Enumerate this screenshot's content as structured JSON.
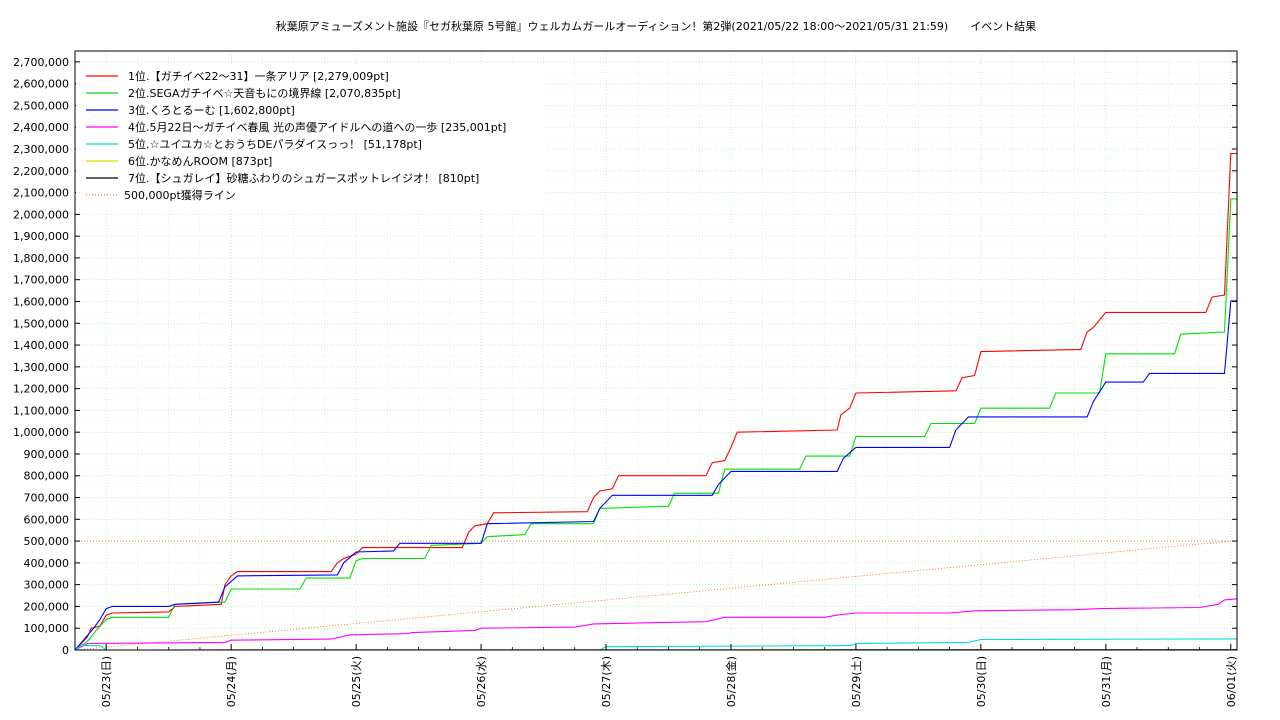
{
  "chart_data": {
    "type": "line",
    "title": "秋葉原アミューズメント施設『セガ秋葉原 5号館』ウェルカムガールオーディション！第2弾(2021/05/22 18:00〜2021/05/31 21:59)　　イベント結果",
    "xlabel": "",
    "ylabel": "",
    "x_ticks": [
      "05/23(日)",
      "05/24(月)",
      "05/25(火)",
      "05/26(水)",
      "05/27(木)",
      "05/28(金)",
      "05/29(土)",
      "05/30(日)",
      "05/31(月)",
      "06/01(火)"
    ],
    "x_tick_days": [
      1,
      2,
      3,
      4,
      5,
      6,
      7,
      8,
      9,
      10
    ],
    "xlim_days": [
      0.75,
      10.05
    ],
    "ylim": [
      0,
      2750000
    ],
    "y_ticks": [
      "0",
      "100,000",
      "200,000",
      "300,000",
      "400,000",
      "500,000",
      "600,000",
      "700,000",
      "800,000",
      "900,000",
      "1,000,000",
      "1,100,000",
      "1,200,000",
      "1,300,000",
      "1,400,000",
      "1,500,000",
      "1,600,000",
      "1,700,000",
      "1,800,000",
      "1,900,000",
      "2,000,000",
      "2,100,000",
      "2,200,000",
      "2,300,000",
      "2,400,000",
      "2,500,000",
      "2,600,000",
      "2,700,000"
    ],
    "y_tick_values": [
      0,
      100000,
      200000,
      300000,
      400000,
      500000,
      600000,
      700000,
      800000,
      900000,
      1000000,
      1100000,
      1200000,
      1300000,
      1400000,
      1500000,
      1600000,
      1700000,
      1800000,
      1900000,
      2000000,
      2100000,
      2200000,
      2300000,
      2400000,
      2500000,
      2600000,
      2700000
    ],
    "grid": true,
    "legend_position": "top-left",
    "series": [
      {
        "name": "1位.【ガチイベ22〜31】一条アリア [2,279,009pt]",
        "color": "#ff0000",
        "points": [
          [
            0.75,
            0
          ],
          [
            0.85,
            60000
          ],
          [
            0.88,
            100000
          ],
          [
            0.95,
            110000
          ],
          [
            1.0,
            160000
          ],
          [
            1.05,
            170000
          ],
          [
            1.5,
            175000
          ],
          [
            1.55,
            200000
          ],
          [
            1.92,
            210000
          ],
          [
            1.95,
            300000
          ],
          [
            2.0,
            340000
          ],
          [
            2.05,
            360000
          ],
          [
            2.8,
            360000
          ],
          [
            2.85,
            400000
          ],
          [
            2.9,
            420000
          ],
          [
            3.0,
            440000
          ],
          [
            3.05,
            470000
          ],
          [
            3.85,
            470000
          ],
          [
            3.9,
            540000
          ],
          [
            3.95,
            570000
          ],
          [
            4.05,
            580000
          ],
          [
            4.1,
            630000
          ],
          [
            4.85,
            635000
          ],
          [
            4.9,
            700000
          ],
          [
            4.95,
            730000
          ],
          [
            5.05,
            740000
          ],
          [
            5.1,
            800000
          ],
          [
            5.8,
            800000
          ],
          [
            5.85,
            860000
          ],
          [
            5.95,
            870000
          ],
          [
            6.0,
            930000
          ],
          [
            6.05,
            1000000
          ],
          [
            6.85,
            1010000
          ],
          [
            6.88,
            1080000
          ],
          [
            6.95,
            1110000
          ],
          [
            7.0,
            1180000
          ],
          [
            7.8,
            1190000
          ],
          [
            7.85,
            1250000
          ],
          [
            7.95,
            1260000
          ],
          [
            8.0,
            1370000
          ],
          [
            8.8,
            1380000
          ],
          [
            8.85,
            1460000
          ],
          [
            8.9,
            1480000
          ],
          [
            9.0,
            1550000
          ],
          [
            9.8,
            1550000
          ],
          [
            9.85,
            1620000
          ],
          [
            9.95,
            1630000
          ],
          [
            10.0,
            2279009
          ],
          [
            10.05,
            2279009
          ]
        ]
      },
      {
        "name": "2位.SEGAガチイベ☆天音もにの境界線 [2,070,835pt]",
        "color": "#00e000",
        "points": [
          [
            0.75,
            0
          ],
          [
            0.85,
            40000
          ],
          [
            0.92,
            90000
          ],
          [
            1.0,
            140000
          ],
          [
            1.05,
            150000
          ],
          [
            1.5,
            150000
          ],
          [
            1.55,
            210000
          ],
          [
            1.95,
            220000
          ],
          [
            2.0,
            280000
          ],
          [
            2.55,
            280000
          ],
          [
            2.6,
            330000
          ],
          [
            2.95,
            330000
          ],
          [
            3.0,
            410000
          ],
          [
            3.05,
            420000
          ],
          [
            3.55,
            420000
          ],
          [
            3.6,
            480000
          ],
          [
            4.0,
            490000
          ],
          [
            4.05,
            520000
          ],
          [
            4.35,
            530000
          ],
          [
            4.4,
            580000
          ],
          [
            4.9,
            580000
          ],
          [
            4.95,
            650000
          ],
          [
            5.5,
            660000
          ],
          [
            5.55,
            720000
          ],
          [
            5.9,
            720000
          ],
          [
            5.95,
            830000
          ],
          [
            6.55,
            830000
          ],
          [
            6.6,
            890000
          ],
          [
            6.95,
            890000
          ],
          [
            7.0,
            980000
          ],
          [
            7.55,
            980000
          ],
          [
            7.6,
            1040000
          ],
          [
            7.95,
            1040000
          ],
          [
            8.0,
            1110000
          ],
          [
            8.55,
            1110000
          ],
          [
            8.6,
            1180000
          ],
          [
            8.95,
            1180000
          ],
          [
            9.0,
            1360000
          ],
          [
            9.55,
            1360000
          ],
          [
            9.6,
            1450000
          ],
          [
            9.95,
            1460000
          ],
          [
            10.0,
            2070835
          ],
          [
            10.05,
            2070835
          ]
        ]
      },
      {
        "name": "3位.くろとるーむ [1,602,800pt]",
        "color": "#0000ff",
        "points": [
          [
            0.75,
            0
          ],
          [
            0.9,
            100000
          ],
          [
            0.95,
            140000
          ],
          [
            1.0,
            190000
          ],
          [
            1.05,
            200000
          ],
          [
            1.5,
            200000
          ],
          [
            1.55,
            210000
          ],
          [
            1.9,
            220000
          ],
          [
            1.95,
            290000
          ],
          [
            2.05,
            340000
          ],
          [
            2.85,
            345000
          ],
          [
            2.9,
            400000
          ],
          [
            3.0,
            450000
          ],
          [
            3.3,
            455000
          ],
          [
            3.35,
            490000
          ],
          [
            4.0,
            490000
          ],
          [
            4.05,
            580000
          ],
          [
            4.9,
            590000
          ],
          [
            4.95,
            650000
          ],
          [
            5.05,
            710000
          ],
          [
            5.85,
            710000
          ],
          [
            5.9,
            760000
          ],
          [
            6.0,
            820000
          ],
          [
            6.85,
            820000
          ],
          [
            6.9,
            880000
          ],
          [
            7.0,
            930000
          ],
          [
            7.75,
            930000
          ],
          [
            7.8,
            1010000
          ],
          [
            7.9,
            1070000
          ],
          [
            8.85,
            1070000
          ],
          [
            8.9,
            1140000
          ],
          [
            9.0,
            1230000
          ],
          [
            9.3,
            1230000
          ],
          [
            9.35,
            1270000
          ],
          [
            9.95,
            1270000
          ],
          [
            10.0,
            1602800
          ],
          [
            10.05,
            1602800
          ]
        ]
      },
      {
        "name": "4位.5月22日〜ガチイベ春風 光の声優アイドルへの道への一歩 [235,001pt]",
        "color": "#ff00ff",
        "points": [
          [
            0.75,
            0
          ],
          [
            0.85,
            30000
          ],
          [
            1.95,
            35000
          ],
          [
            2.0,
            45000
          ],
          [
            2.8,
            50000
          ],
          [
            2.95,
            70000
          ],
          [
            3.4,
            75000
          ],
          [
            3.45,
            80000
          ],
          [
            3.95,
            90000
          ],
          [
            4.0,
            100000
          ],
          [
            4.75,
            105000
          ],
          [
            4.9,
            120000
          ],
          [
            5.8,
            130000
          ],
          [
            5.95,
            150000
          ],
          [
            6.75,
            150000
          ],
          [
            6.85,
            160000
          ],
          [
            7.0,
            170000
          ],
          [
            7.75,
            170000
          ],
          [
            7.95,
            180000
          ],
          [
            8.75,
            185000
          ],
          [
            8.95,
            190000
          ],
          [
            9.75,
            195000
          ],
          [
            9.9,
            210000
          ],
          [
            9.95,
            230000
          ],
          [
            10.05,
            235001
          ]
        ]
      },
      {
        "name": "5位.☆ユイユカ☆とおうちDEパラダイスっっ！ [51,178pt]",
        "color": "#00dddd",
        "points": [
          [
            0.75,
            0
          ],
          [
            0.8,
            20000
          ],
          [
            0.95,
            20000
          ],
          [
            1.0,
            0
          ],
          [
            4.95,
            0
          ],
          [
            5.0,
            15000
          ],
          [
            6.95,
            20000
          ],
          [
            7.0,
            30000
          ],
          [
            7.9,
            35000
          ],
          [
            8.0,
            48000
          ],
          [
            10.05,
            51178
          ]
        ]
      },
      {
        "name": "6位.かなめんROOM [873pt]",
        "color": "#e8d800",
        "points": [
          [
            0.75,
            0
          ],
          [
            10.05,
            873
          ]
        ]
      },
      {
        "name": "7位.【シュガレイ】砂糖ふわりのシュガースポットレイジオ！ [810pt]",
        "color": "#000000",
        "points": [
          [
            0.75,
            0
          ],
          [
            10.05,
            810
          ]
        ]
      }
    ],
    "reference_line": {
      "name": "500,000pt獲得ライン",
      "color": "#ff5a00",
      "points": [
        [
          0.75,
          0
        ],
        [
          10.0,
          500000
        ]
      ],
      "level": 500000
    }
  }
}
